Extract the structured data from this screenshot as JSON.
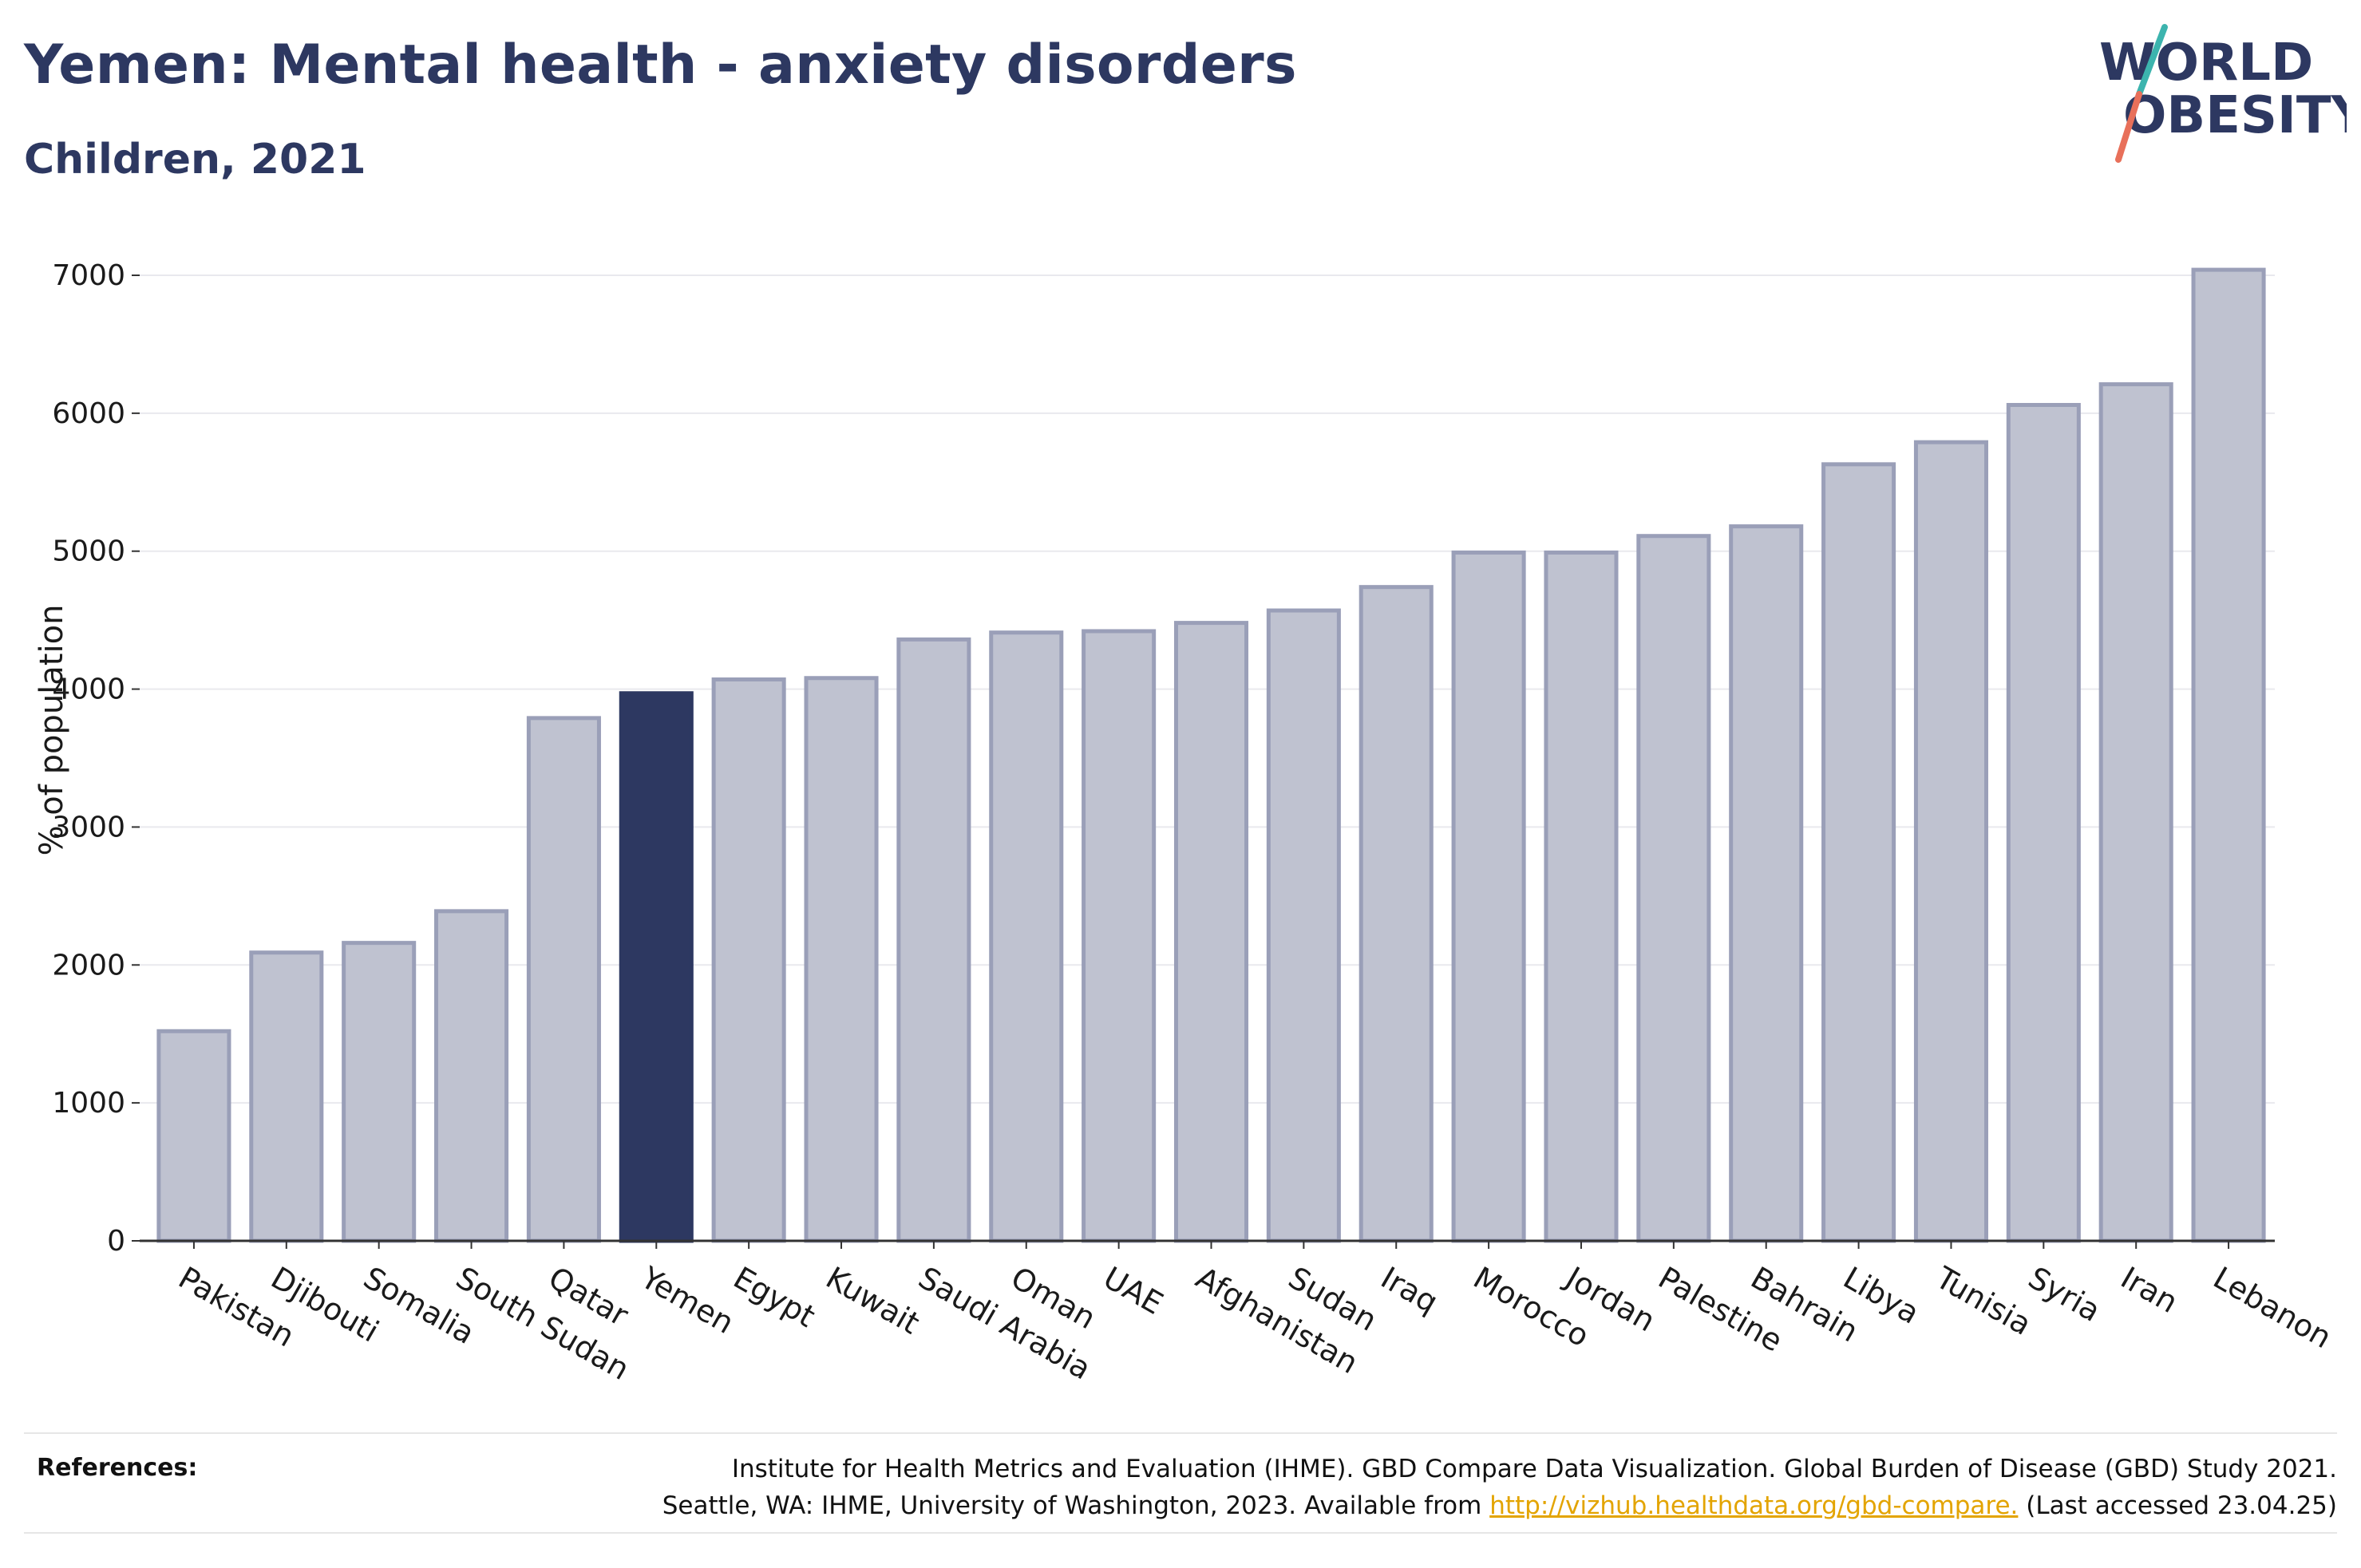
{
  "header": {
    "title": "Yemen: Mental health - anxiety disorders",
    "subtitle": "Children, 2021"
  },
  "logo": {
    "line1": "WORLD",
    "line2": "OBESITY"
  },
  "colors": {
    "highlight": "#2d3861",
    "bar_fill": "#bfc2d0",
    "bar_stroke": "#9a9fb8",
    "accent_teal": "#3cb4ae",
    "accent_coral": "#e8705a",
    "link": "#e3a400"
  },
  "chart_data": {
    "type": "bar",
    "title": "Yemen: Mental health - anxiety disorders",
    "subtitle": "Children, 2021",
    "xlabel": "",
    "ylabel": "% of population",
    "ylim": [
      0,
      7000
    ],
    "yticks": [
      0,
      1000,
      2000,
      3000,
      4000,
      5000,
      6000,
      7000
    ],
    "grid": true,
    "highlight": "Yemen",
    "categories": [
      "Pakistan",
      "Djibouti",
      "Somalia",
      "South Sudan",
      "Qatar",
      "Yemen",
      "Egypt",
      "Kuwait",
      "Saudi Arabia",
      "Oman",
      "UAE",
      "Afghanistan",
      "Sudan",
      "Iraq",
      "Morocco",
      "Jordan",
      "Palestine",
      "Bahrain",
      "Libya",
      "Tunisia",
      "Syria",
      "Iran",
      "Lebanon"
    ],
    "values": [
      1520,
      2090,
      2160,
      2390,
      3790,
      3970,
      4070,
      4080,
      4360,
      4410,
      4420,
      4480,
      4570,
      4740,
      4990,
      4990,
      5110,
      5180,
      5630,
      5790,
      6060,
      6210,
      7040
    ]
  },
  "references": {
    "heading": "References:",
    "line1": "Institute for Health Metrics and Evaluation (IHME). GBD Compare Data Visualization. Global Burden of Disease (GBD) Study 2021.",
    "line2_before": "Seattle, WA: IHME, University of Washington, 2023. Available from",
    "link_text": "http://vizhub.healthdata.org/gbd-compare.",
    "line2_after": "(Last accessed 23.04.25)"
  }
}
